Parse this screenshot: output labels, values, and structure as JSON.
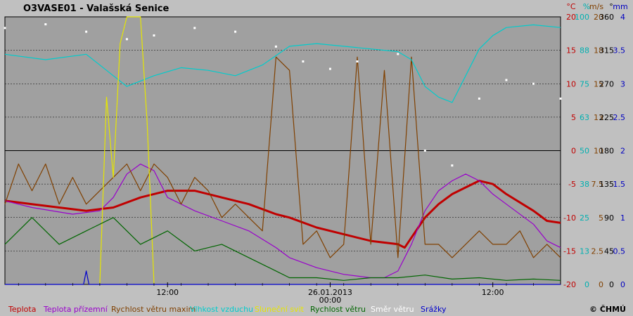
{
  "chart_data": {
    "type": "line",
    "title": "O3VASE01 - Valašská Senice",
    "copyright": "© ČHMÚ",
    "x_ticks": [
      "12:00",
      "26.01.2013\n00:00",
      "12:00"
    ],
    "date_tick": {
      "date": "26.01.2013",
      "time": "00:00"
    },
    "y_grid_values": [
      20,
      15,
      10,
      5,
      0,
      -5,
      -10,
      -15,
      -20
    ],
    "unit_headers": [
      {
        "text": "°C",
        "color": "#c00000"
      },
      {
        "text": "%",
        "color": "#00b0b0"
      },
      {
        "text": "m/s",
        "color": "#804000"
      },
      {
        "text": "°",
        "color": "#000000"
      },
      {
        "text": "mm",
        "color": "#0000c0"
      }
    ],
    "axes": [
      {
        "name": "temperature",
        "color": "#c00000",
        "ticks": [
          "20",
          "15",
          "10",
          "5",
          "0",
          "-5",
          "-10",
          "-15",
          "-20"
        ]
      },
      {
        "name": "humidity",
        "color": "#00b0b0",
        "ticks": [
          "100",
          "88",
          "75",
          "63",
          "50",
          "38",
          "25",
          "13",
          "0"
        ]
      },
      {
        "name": "wind_speed",
        "color": "#804000",
        "ticks": [
          "20",
          "18",
          "15",
          "13",
          "10",
          "7.5",
          "5",
          "2.5",
          "0"
        ]
      },
      {
        "name": "wind_direction",
        "color": "#000000",
        "ticks": [
          "360",
          "315",
          "270",
          "225",
          "180",
          "135",
          "90",
          "45",
          "0"
        ]
      },
      {
        "name": "precipitation",
        "color": "#0000c0",
        "ticks": [
          "4",
          "3.5",
          "3",
          "2.5",
          "2",
          "1.5",
          "1",
          "0.5",
          "0"
        ]
      }
    ],
    "legend": [
      {
        "label": "Teplota",
        "color": "#c00000"
      },
      {
        "label": "Teplota přízemní",
        "color": "#9900cc"
      },
      {
        "label": "Rychlost větru maxim",
        "color": "#804000"
      },
      {
        "label": "Vlhkost vzduchu",
        "color": "#00cccc"
      },
      {
        "label": "Sluneční svit",
        "color": "#e6e600"
      },
      {
        "label": "Rychlost větru",
        "color": "#006600"
      },
      {
        "label": "Směr větru",
        "color": "#ffffff"
      },
      {
        "label": "Srážky",
        "color": "#0000cc"
      }
    ],
    "x_range_hours": [
      -21,
      20
    ],
    "series": [
      {
        "name": "Teplota",
        "color": "#c00000",
        "unit": "°C",
        "x": [
          -21,
          -19,
          -17,
          -15,
          -13,
          -11,
          -9,
          -7,
          -5,
          -3,
          -1,
          0,
          2,
          4,
          6,
          8,
          8.5,
          9,
          10,
          11,
          12,
          13,
          14,
          15,
          16,
          18,
          19,
          20
        ],
        "y": [
          -7.5,
          -8,
          -8.5,
          -9,
          -8.5,
          -7,
          -6,
          -6,
          -7,
          -8,
          -9.5,
          -10,
          -11.5,
          -12.5,
          -13.5,
          -14,
          -14.5,
          -13,
          -10,
          -8,
          -6.5,
          -5.5,
          -4.5,
          -5,
          -6.5,
          -9,
          -10.5,
          -10.8
        ]
      },
      {
        "name": "Teplota přízemní",
        "color": "#9900cc",
        "unit": "°C",
        "x": [
          -21,
          -19,
          -16,
          -14,
          -13,
          -12,
          -11,
          -10,
          -9,
          -7,
          -5,
          -3,
          -1,
          0,
          2,
          4,
          6,
          7,
          8,
          9,
          10,
          11,
          12,
          13,
          14,
          15,
          16,
          18,
          19,
          20
        ],
        "y": [
          -7.5,
          -8.5,
          -9.5,
          -9,
          -7,
          -3.5,
          -2,
          -3,
          -7,
          -9,
          -10.5,
          -12,
          -14.5,
          -16,
          -17.5,
          -18.5,
          -19,
          -19,
          -18,
          -14,
          -9,
          -6,
          -4.5,
          -3.5,
          -4.5,
          -6.5,
          -8,
          -11,
          -13.5,
          -14.5
        ]
      },
      {
        "name": "Rychlost větru maxim",
        "color": "#804000",
        "unit": "m/s",
        "min": 0,
        "max": 20,
        "x": [
          -21,
          -20,
          -19,
          -18,
          -17,
          -16,
          -15,
          -14,
          -13,
          -12,
          -11,
          -10,
          -9,
          -8,
          -7,
          -6,
          -5,
          -4,
          -3,
          -2,
          -1,
          0,
          1,
          2,
          3,
          4,
          5,
          6,
          7,
          8,
          9,
          10,
          11,
          12,
          13,
          14,
          15,
          16,
          17,
          18,
          19,
          20
        ],
        "y": [
          6,
          9,
          7,
          9,
          6,
          8,
          6,
          7,
          8,
          9,
          7,
          9,
          8,
          6,
          8,
          7,
          5,
          6,
          5,
          4,
          17,
          16,
          3,
          4,
          2,
          3,
          17,
          3,
          16,
          2,
          17,
          3,
          3,
          2,
          3,
          4,
          3,
          3,
          4,
          2,
          3,
          2
        ]
      },
      {
        "name": "Vlhkost vzduchu",
        "color": "#00cccc",
        "unit": "%",
        "x": [
          -21,
          -18,
          -15,
          -13,
          -12,
          -10,
          -8,
          -6,
          -4,
          -2,
          0,
          2,
          4,
          6,
          8,
          9,
          10,
          11,
          12,
          13,
          14,
          15,
          16,
          18,
          20
        ],
        "y": [
          86,
          84,
          86,
          78,
          74,
          78,
          81,
          80,
          78,
          82,
          89,
          90,
          89,
          88,
          87,
          84,
          74,
          70,
          68,
          78,
          88,
          93,
          96,
          97,
          96
        ]
      },
      {
        "name": "Sluneční svit",
        "color": "#e6e600",
        "unit": "h",
        "x": [
          -14,
          -13.5,
          -13,
          -12.5,
          -12,
          -11.5,
          -11,
          -10.5,
          -10
        ],
        "y": [
          0,
          70,
          40,
          90,
          100,
          100,
          100,
          60,
          0
        ]
      },
      {
        "name": "Rychlost větru",
        "color": "#006600",
        "unit": "m/s",
        "min": 0,
        "max": 8,
        "x": [
          -21,
          -19,
          -17,
          -15,
          -13,
          -11,
          -9,
          -7,
          -5,
          -3,
          -1,
          0,
          2,
          4,
          6,
          8,
          10,
          12,
          14,
          16,
          18,
          20
        ],
        "y": [
          3,
          5,
          3,
          4,
          5,
          3,
          4,
          2.5,
          3,
          2,
          1,
          0.5,
          0.5,
          0.3,
          0.5,
          0.5,
          0.7,
          0.4,
          0.5,
          0.3,
          0.4,
          0.3
        ]
      },
      {
        "name": "Směr větru",
        "color": "#ffffff",
        "unit": "°",
        "x": [
          -21,
          -18,
          -15,
          -12,
          -10,
          -7,
          -4,
          -1,
          1,
          3,
          5,
          8,
          10,
          12,
          14,
          16,
          18,
          20
        ],
        "y": [
          345,
          350,
          340,
          330,
          335,
          345,
          340,
          320,
          300,
          290,
          300,
          310,
          180,
          160,
          250,
          275,
          270,
          250
        ]
      },
      {
        "name": "Srážky",
        "color": "#0000cc",
        "unit": "mm",
        "x": [
          -21,
          -15.2,
          -15,
          -14.8,
          20
        ],
        "y": [
          0,
          0,
          0.2,
          0,
          0
        ]
      }
    ]
  }
}
